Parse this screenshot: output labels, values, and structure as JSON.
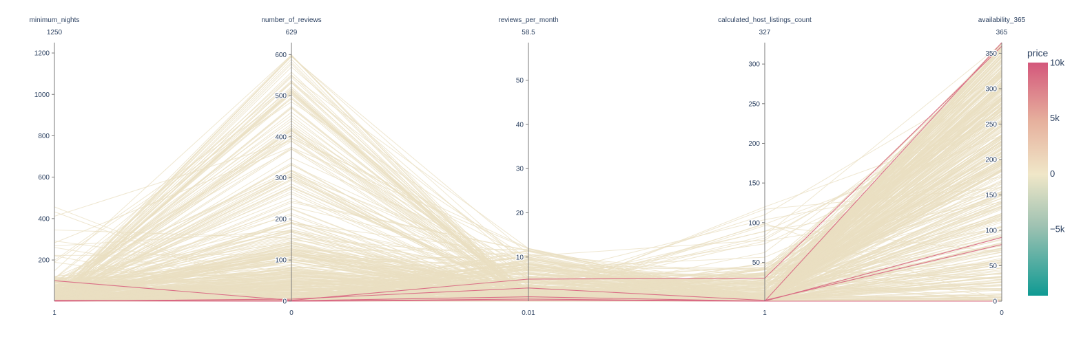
{
  "chart_data": {
    "type": "parallel_coordinates",
    "color_variable": "price",
    "colorbar": {
      "title": "price",
      "ticks": [
        {
          "label": "10k",
          "value": 10000
        },
        {
          "label": "5k",
          "value": 5000
        },
        {
          "label": "0",
          "value": 0
        },
        {
          "label": "−5k",
          "value": -5000
        }
      ],
      "range": [
        -11000,
        10000
      ],
      "colors": {
        "low": "#0f9a93",
        "mid_low": "#9fc2b2",
        "mid": "#f0e7c8",
        "mid_high": "#e6b09d",
        "high": "#d4577b"
      }
    },
    "axes": [
      {
        "key": "minimum_nights",
        "label": "minimum_nights",
        "max_label": "1250",
        "min_label": "1",
        "range": [
          1,
          1250
        ],
        "tick_values": [
          200,
          400,
          600,
          800,
          1000,
          1200
        ],
        "tick_labels": [
          "200",
          "400",
          "600",
          "800",
          "1000",
          "1200"
        ]
      },
      {
        "key": "number_of_reviews",
        "label": "number_of_reviews",
        "max_label": "629",
        "min_label": "0",
        "range": [
          0,
          629
        ],
        "tick_values": [
          0,
          100,
          200,
          300,
          400,
          500,
          600
        ],
        "tick_labels": [
          "0",
          "100",
          "200",
          "300",
          "400",
          "500",
          "600"
        ]
      },
      {
        "key": "reviews_per_month",
        "label": "reviews_per_month",
        "max_label": "58.5",
        "min_label": "0.01",
        "range": [
          0.01,
          58.5
        ],
        "tick_values": [
          10,
          20,
          30,
          40,
          50
        ],
        "tick_labels": [
          "10",
          "20",
          "30",
          "40",
          "50"
        ]
      },
      {
        "key": "calculated_host_listings_count",
        "label": "calculated_host_listings_count",
        "max_label": "327",
        "min_label": "1",
        "range": [
          1,
          327
        ],
        "tick_values": [
          50,
          100,
          150,
          200,
          250,
          300
        ],
        "tick_labels": [
          "50",
          "100",
          "150",
          "200",
          "250",
          "300"
        ]
      },
      {
        "key": "availability_365",
        "label": "availability_365",
        "max_label": "365",
        "min_label": "0",
        "range": [
          0,
          365
        ],
        "tick_values": [
          0,
          50,
          100,
          150,
          200,
          250,
          300,
          350
        ],
        "tick_labels": [
          "0",
          "50",
          "100",
          "150",
          "200",
          "250",
          "300",
          "350"
        ]
      }
    ],
    "highlighted_lines": [
      {
        "values": [
          100,
          2,
          5,
          30,
          360
        ],
        "price": 9500
      },
      {
        "values": [
          5,
          0,
          0.5,
          1,
          365
        ],
        "price": 9800
      },
      {
        "values": [
          2,
          1,
          1,
          1,
          90
        ],
        "price": 9000
      },
      {
        "values": [
          3,
          0,
          0.2,
          1,
          0
        ],
        "price": 9200
      },
      {
        "values": [
          1,
          5,
          3,
          2,
          80
        ],
        "price": 8500
      }
    ],
    "line_count_note": ""
  }
}
